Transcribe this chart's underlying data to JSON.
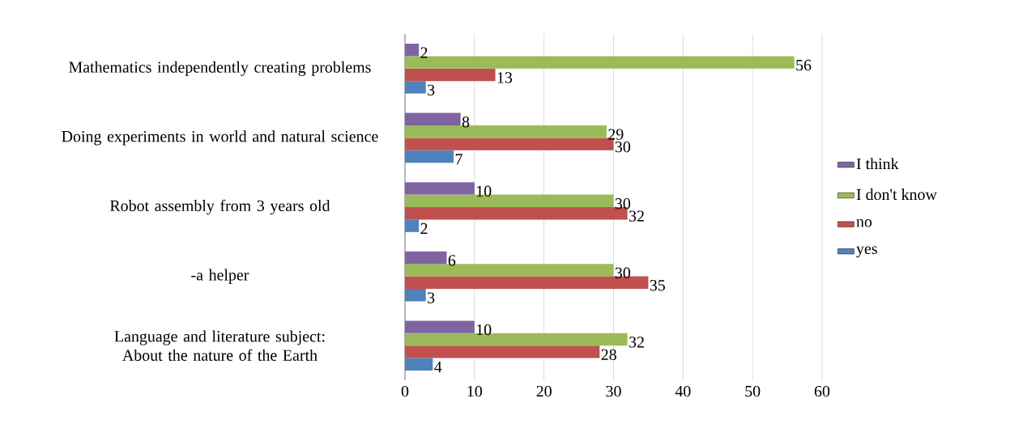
{
  "chart_data": {
    "type": "bar",
    "orientation": "horizontal",
    "categories": [
      "Mathematics independently creating problems",
      "Doing experiments in world and natural science",
      "Robot assembly from 3 years old",
      "-a helper",
      "Language and literature subject: About the nature of the Earth"
    ],
    "series": [
      {
        "name": "yes",
        "color": "#4f81bd",
        "values": [
          3,
          7,
          2,
          3,
          4
        ]
      },
      {
        "name": "no",
        "color": "#c0504d",
        "values": [
          13,
          30,
          32,
          35,
          28
        ]
      },
      {
        "name": "I don't know",
        "color": "#9bbb59",
        "values": [
          56,
          29,
          30,
          30,
          32
        ]
      },
      {
        "name": "I think",
        "color": "#8064a2",
        "values": [
          2,
          8,
          10,
          6,
          10
        ]
      }
    ],
    "xlim": [
      0,
      60
    ],
    "xticks": [
      0,
      10,
      20,
      30,
      40,
      50,
      60
    ],
    "grid": "x",
    "legend": "right",
    "data_labels": true
  }
}
